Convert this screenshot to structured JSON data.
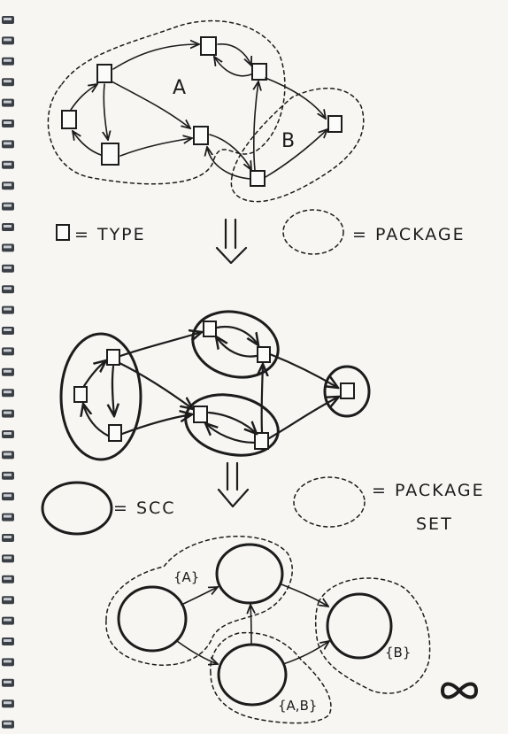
{
  "stage1": {
    "package_a_label": "A",
    "package_b_label": "B"
  },
  "legend1": {
    "type_text": "= TYPE",
    "package_text": "= PACKAGE"
  },
  "legend2": {
    "scc_text": "= SCC",
    "package_set_line1": "= PACKAGE",
    "package_set_line2": "SET"
  },
  "stage3": {
    "set_a_label": "{A}",
    "set_b_label": "{B}",
    "set_ab_label": "{A,B}"
  },
  "logo_icon": "infinity"
}
